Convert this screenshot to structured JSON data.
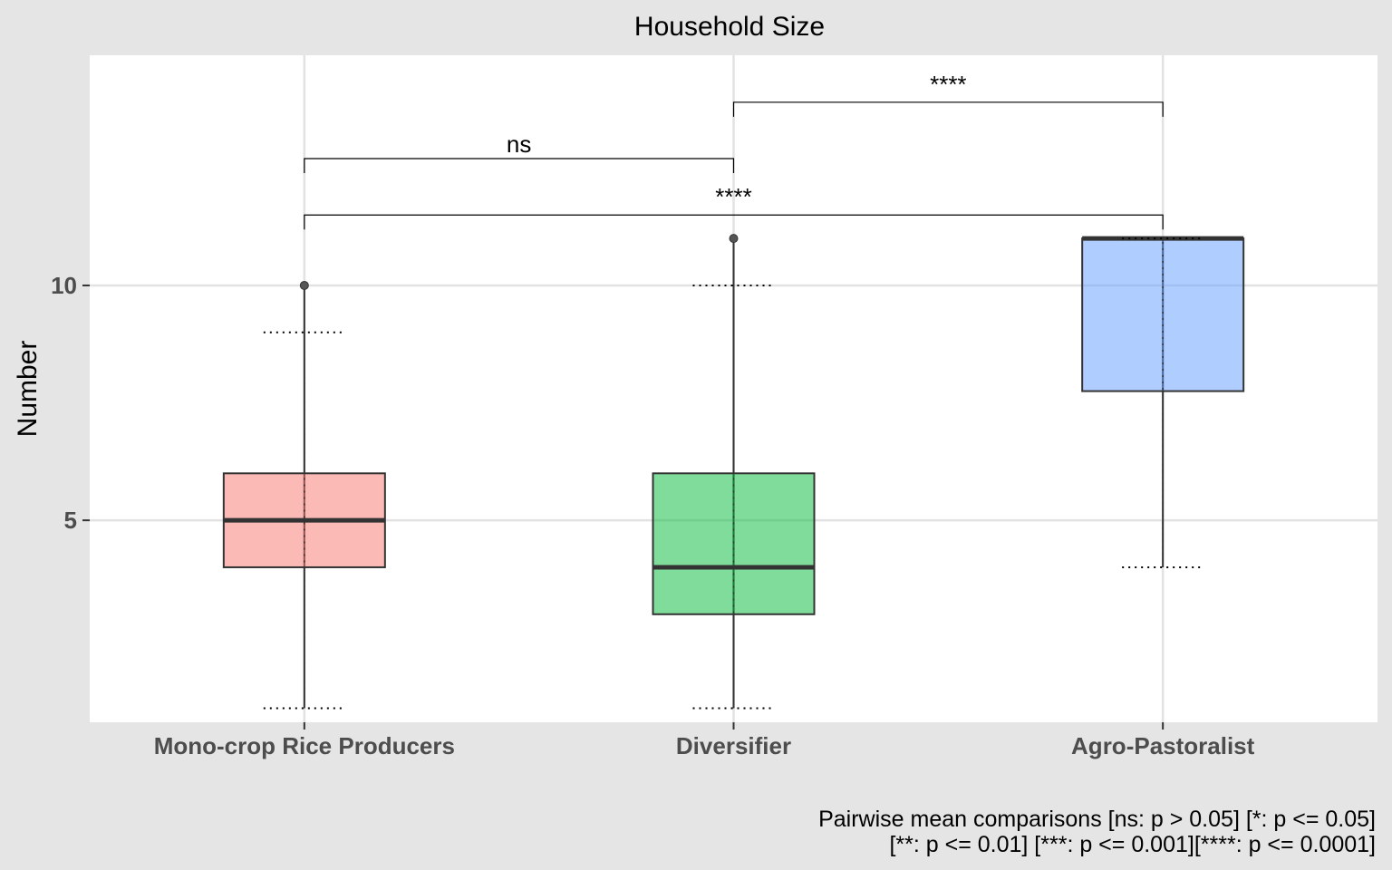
{
  "chart_data": {
    "type": "boxplot",
    "title": "Household Size",
    "ylabel": "Number",
    "xlabel": "",
    "ylim": [
      0.7,
      14.9
    ],
    "y_ticks": [
      5,
      10
    ],
    "grid": true,
    "categories": [
      "Mono-crop Rice Producers",
      "Diversifier",
      "Agro-Pastoralist"
    ],
    "boxes": [
      {
        "category": "Mono-crop Rice Producers",
        "min": 1,
        "q1": 4,
        "median": 5,
        "q3": 6,
        "max": 10,
        "mean_whisker_low": 1,
        "mean_whisker_high": 9,
        "outliers": [
          10
        ],
        "color": "#f8766d"
      },
      {
        "category": "Diversifier",
        "min": 1,
        "q1": 3,
        "median": 4,
        "q3": 6,
        "max": 11,
        "mean_whisker_low": 1,
        "mean_whisker_high": 10,
        "outliers": [
          11
        ],
        "color": "#00ba38"
      },
      {
        "category": "Agro-Pastoralist",
        "min": 4,
        "q1": 7.75,
        "median": 11,
        "q3": 11,
        "max": 11,
        "mean_whisker_low": 4,
        "mean_whisker_high": 11,
        "outliers": [],
        "color": "#619cff"
      }
    ],
    "comparisons": [
      {
        "from": "Mono-crop Rice Producers",
        "to": "Diversifier",
        "label": "ns",
        "y": 12.7
      },
      {
        "from": "Diversifier",
        "to": "Agro-Pastoralist",
        "label": "****",
        "y": 13.9
      },
      {
        "from": "Mono-crop Rice Producers",
        "to": "Agro-Pastoralist",
        "label": "****",
        "y": 11.5
      }
    ],
    "caption_lines": [
      "Pairwise mean comparisons [ns: p > 0.05] [*: p <= 0.05]",
      "[**: p <= 0.01] [***: p <= 0.001][****: p <= 0.0001]"
    ]
  }
}
